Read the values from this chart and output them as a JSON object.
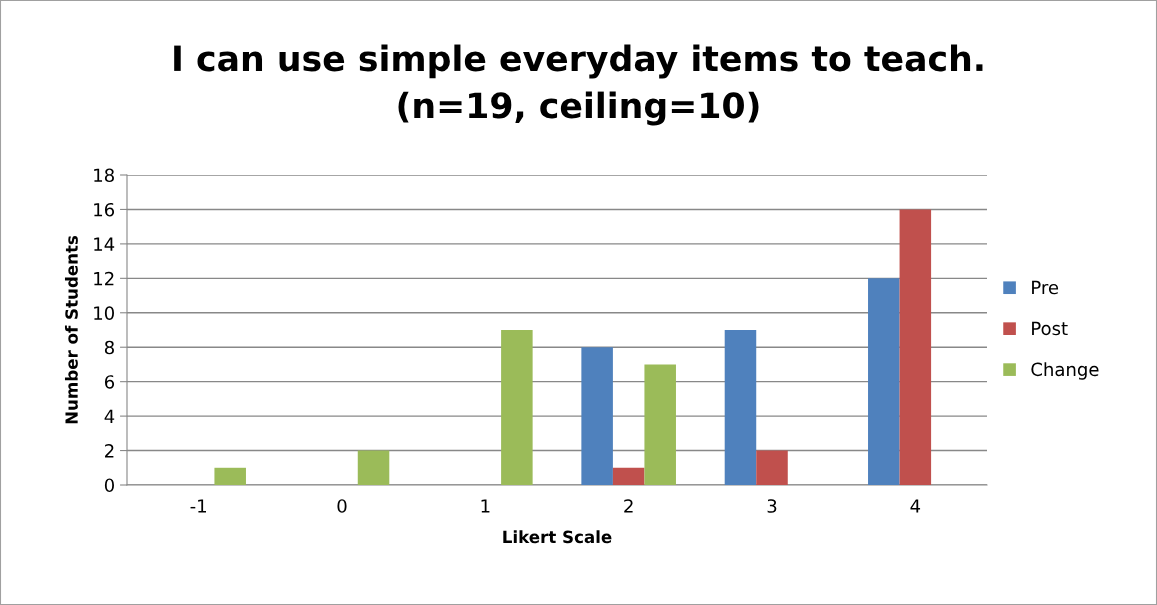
{
  "chart_data": {
    "type": "bar",
    "title": "I can use simple everyday items to teach.\n(n=19, ceiling=10)",
    "xlabel": "Likert Scale",
    "ylabel": "Number of Students",
    "categories": [
      "-1",
      "0",
      "1",
      "2",
      "3",
      "4"
    ],
    "series": [
      {
        "name": "Pre",
        "color": "#4f81bd",
        "values": [
          0,
          0,
          0,
          8,
          9,
          12
        ]
      },
      {
        "name": "Post",
        "color": "#c0504d",
        "values": [
          0,
          0,
          0,
          1,
          2,
          16
        ]
      },
      {
        "name": "Change",
        "color": "#9bbb59",
        "values": [
          1,
          2,
          9,
          7,
          0,
          0
        ]
      }
    ],
    "ylim": [
      0,
      18
    ],
    "yticks": [
      0,
      2,
      4,
      6,
      8,
      10,
      12,
      14,
      16,
      18
    ],
    "grid": "y",
    "legend": "right"
  }
}
